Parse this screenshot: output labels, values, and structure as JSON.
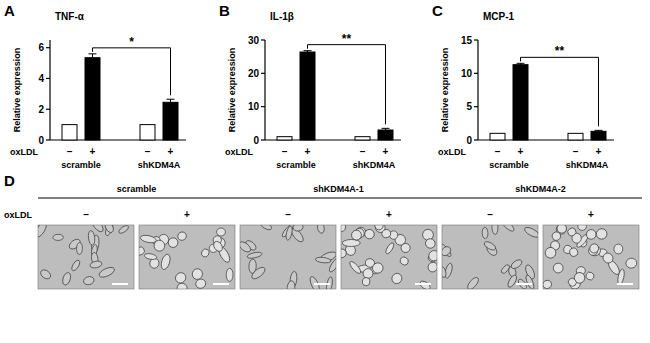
{
  "chart_data": [
    {
      "type": "bar",
      "panel": "A",
      "title": "TNF-α",
      "y_label": "Relative expression",
      "row_label": "oxLDL",
      "categories": [
        "–",
        "+",
        "–",
        "+"
      ],
      "groups": [
        "scramble",
        "shKDM4A"
      ],
      "values": [
        1,
        5.35,
        1,
        2.45
      ],
      "errors": [
        0,
        0.25,
        0,
        0.2
      ],
      "colors": [
        "#ffffff",
        "#000000",
        "#ffffff",
        "#000000"
      ],
      "ylim": [
        0,
        6.5
      ],
      "yticks": [
        0,
        2,
        4,
        6
      ],
      "significance": {
        "label": "*",
        "bars": [
          1,
          3
        ]
      }
    },
    {
      "type": "bar",
      "panel": "B",
      "title": "IL-1β",
      "y_label": "Relative expression",
      "row_label": "oxLDL",
      "categories": [
        "–",
        "+",
        "–",
        "+"
      ],
      "groups": [
        "scramble",
        "shKDM4A"
      ],
      "values": [
        1,
        26.4,
        1,
        3.0
      ],
      "errors": [
        0,
        0.4,
        0,
        0.5
      ],
      "colors": [
        "#ffffff",
        "#000000",
        "#ffffff",
        "#000000"
      ],
      "ylim": [
        0,
        30
      ],
      "yticks": [
        0,
        10,
        20,
        30
      ],
      "significance": {
        "label": "**",
        "bars": [
          1,
          3
        ]
      }
    },
    {
      "type": "bar",
      "panel": "C",
      "title": "MCP-1",
      "y_label": "Relative expression",
      "row_label": "oxLDL",
      "categories": [
        "–",
        "+",
        "–",
        "+"
      ],
      "groups": [
        "scramble",
        "shKDM4A"
      ],
      "values": [
        1,
        11.3,
        1,
        1.3
      ],
      "errors": [
        0,
        0.2,
        0,
        0.15
      ],
      "colors": [
        "#ffffff",
        "#000000",
        "#ffffff",
        "#000000"
      ],
      "ylim": [
        0,
        15
      ],
      "yticks": [
        0,
        5,
        10,
        15
      ],
      "significance": {
        "label": "**",
        "bars": [
          1,
          3
        ]
      }
    }
  ],
  "panel_d": {
    "panel": "D",
    "row_label": "oxLDL",
    "groups": [
      {
        "name": "scramble",
        "conditions": [
          "–",
          "+"
        ]
      },
      {
        "name": "shKDM4A-1",
        "conditions": [
          "–",
          "+"
        ]
      },
      {
        "name": "shKDM4A-2",
        "conditions": [
          "–",
          "+"
        ]
      }
    ]
  }
}
